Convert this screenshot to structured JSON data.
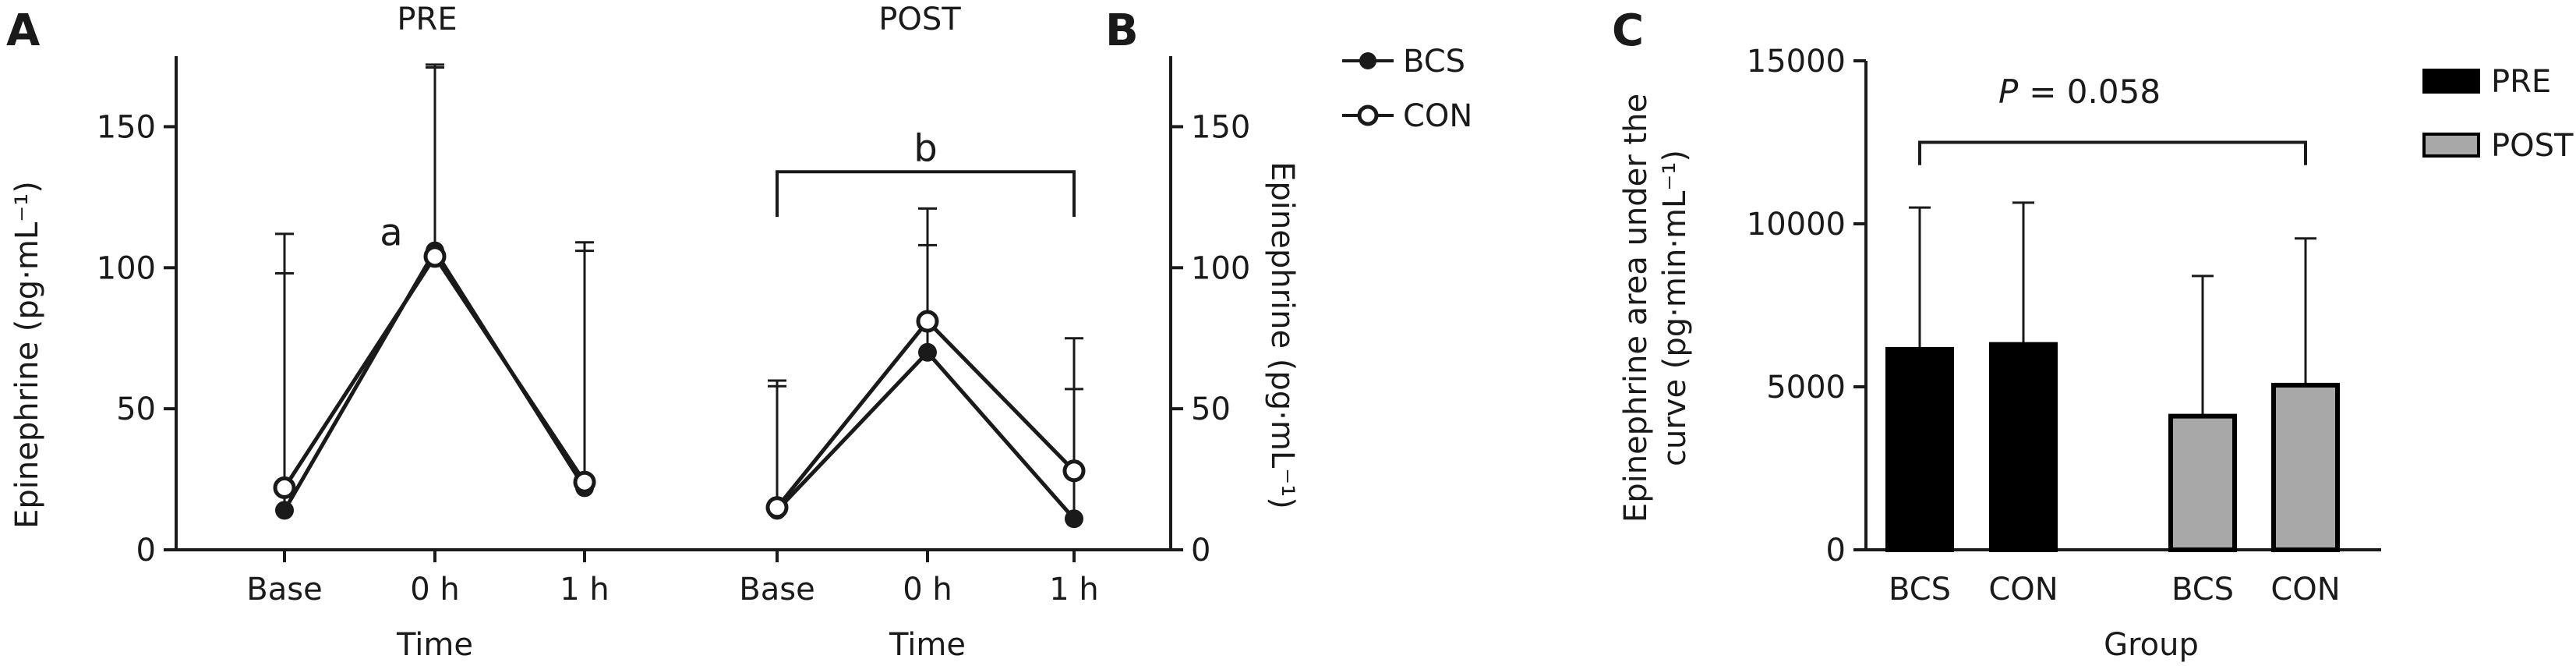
{
  "panel_labels": {
    "a": "A",
    "b": "B",
    "c": "C"
  },
  "chart_data": [
    {
      "type": "line",
      "panel": "A",
      "title": "PRE",
      "xlabel": "Time",
      "ylabel": "Epinephrine (pg·mL⁻¹)",
      "categories": [
        "Base",
        "0 h",
        "1 h"
      ],
      "ylim": [
        0,
        175
      ],
      "yticks": [
        0,
        50,
        100,
        150
      ],
      "series": [
        {
          "name": "BCS",
          "marker": "filled",
          "values": [
            14,
            106,
            22
          ],
          "error_upper": [
            98,
            172,
            106
          ]
        },
        {
          "name": "CON",
          "marker": "open",
          "values": [
            22,
            104,
            24
          ],
          "error_upper": [
            112,
            171,
            109
          ]
        }
      ],
      "annotation": "a"
    },
    {
      "type": "line",
      "panel": "B",
      "title": "POST",
      "xlabel": "Time",
      "ylabel": "Epinephrine (pg·mL⁻¹)",
      "categories": [
        "Base",
        "0 h",
        "1 h"
      ],
      "ylim": [
        0,
        175
      ],
      "yticks": [
        0,
        50,
        100,
        150
      ],
      "series": [
        {
          "name": "BCS",
          "marker": "filled",
          "values": [
            14,
            70,
            11
          ],
          "error_upper": [
            58,
            108,
            57
          ]
        },
        {
          "name": "CON",
          "marker": "open",
          "values": [
            15,
            81,
            28
          ],
          "error_upper": [
            60,
            121,
            75
          ]
        }
      ],
      "bracket": {
        "from": "Base",
        "to": "1 h",
        "label": "b"
      },
      "legend": [
        "BCS",
        "CON"
      ]
    },
    {
      "type": "bar",
      "panel": "C",
      "xlabel": "Group",
      "ylabel_line1": "Epinephrine area under the",
      "ylabel_line2": "curve (pg·min·mL⁻¹)",
      "ylim": [
        0,
        15000
      ],
      "yticks": [
        0,
        5000,
        10000,
        15000
      ],
      "categories": [
        "BCS",
        "CON",
        "BCS",
        "CON"
      ],
      "groups": [
        "PRE",
        "PRE",
        "POST",
        "POST"
      ],
      "values": [
        6150,
        6300,
        4100,
        5050
      ],
      "error_upper": [
        10500,
        10650,
        8400,
        9550
      ],
      "colors": {
        "PRE": "#000000",
        "POST": "#a8a8a8"
      },
      "legend": [
        "PRE",
        "POST"
      ],
      "bracket": {
        "from": 0,
        "to": 3,
        "p_label": "P",
        "p_value": "= 0.058"
      }
    }
  ]
}
